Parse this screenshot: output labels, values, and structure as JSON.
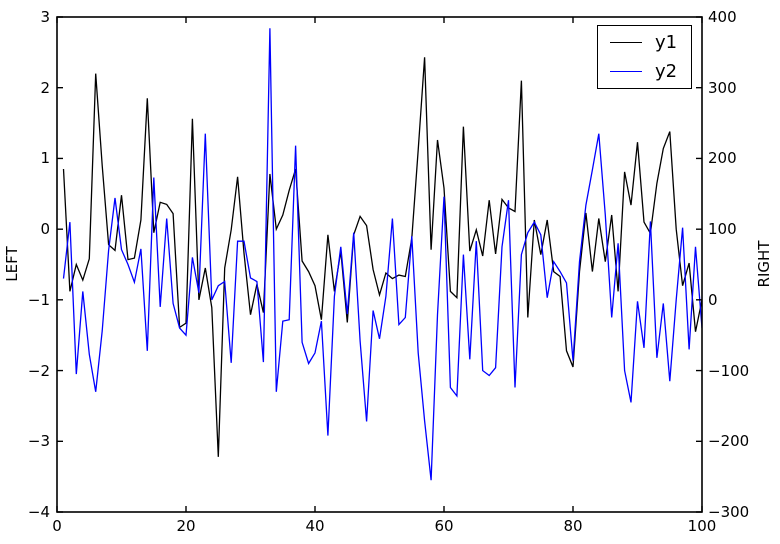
{
  "figure": {
    "background": "#ffffff",
    "accent_black": "#000000",
    "accent_blue": "#0000ff"
  },
  "chart_data": {
    "type": "line",
    "title": "",
    "xlabel": "",
    "ylabel_left": "LEFT",
    "ylabel_right": "RIGHT",
    "xlim": [
      0,
      100
    ],
    "ylim_left": [
      -4,
      3
    ],
    "ylim_right": [
      -300,
      400
    ],
    "xticks": [
      0,
      20,
      40,
      60,
      80,
      100
    ],
    "yticks_left": [
      3,
      2,
      1,
      0,
      -1,
      -2,
      -3,
      -4
    ],
    "yticks_right": [
      400,
      300,
      200,
      100,
      0,
      -100,
      -200,
      -300
    ],
    "grid": false,
    "legend": {
      "position": "upper right",
      "entries": [
        "y1",
        "y2"
      ]
    },
    "x": [
      1,
      2,
      3,
      4,
      5,
      6,
      7,
      8,
      9,
      10,
      11,
      12,
      13,
      14,
      15,
      16,
      17,
      18,
      19,
      20,
      21,
      22,
      23,
      24,
      25,
      26,
      27,
      28,
      29,
      30,
      31,
      32,
      33,
      34,
      35,
      36,
      37,
      38,
      39,
      40,
      41,
      42,
      43,
      44,
      45,
      46,
      47,
      48,
      49,
      50,
      51,
      52,
      53,
      54,
      55,
      56,
      57,
      58,
      59,
      60,
      61,
      62,
      63,
      64,
      65,
      66,
      67,
      68,
      69,
      70,
      71,
      72,
      73,
      74,
      75,
      76,
      77,
      78,
      79,
      80,
      81,
      82,
      83,
      84,
      85,
      86,
      87,
      88,
      89,
      90,
      91,
      92,
      93,
      94,
      95,
      96,
      97,
      98,
      99,
      100
    ],
    "series": [
      {
        "name": "y1",
        "axis": "left",
        "color": "#000000",
        "values": [
          0.85,
          -0.88,
          -0.5,
          -0.72,
          -0.42,
          2.2,
          0.9,
          -0.22,
          -0.3,
          0.48,
          -0.43,
          -0.41,
          0.13,
          1.85,
          -0.05,
          0.38,
          0.35,
          0.22,
          -1.39,
          -1.33,
          1.56,
          -1.0,
          -0.55,
          -1.11,
          -3.22,
          -0.55,
          -0.01,
          0.74,
          -0.34,
          -1.21,
          -0.78,
          -1.18,
          0.78,
          0.0,
          0.2,
          0.55,
          0.85,
          -0.45,
          -0.6,
          -0.8,
          -1.28,
          -0.08,
          -0.88,
          -0.31,
          -1.32,
          -0.08,
          0.18,
          0.05,
          -0.57,
          -0.93,
          -0.62,
          -0.7,
          -0.65,
          -0.67,
          -0.13,
          1.12,
          2.43,
          -0.29,
          1.26,
          0.58,
          -0.88,
          -0.97,
          1.45,
          -0.31,
          -0.01,
          -0.38,
          0.41,
          -0.35,
          0.42,
          0.3,
          0.25,
          2.1,
          -1.25,
          0.13,
          -0.36,
          0.13,
          -0.6,
          -0.67,
          -1.72,
          -1.95,
          -0.6,
          0.23,
          -0.6,
          0.15,
          -0.46,
          0.2,
          -0.88,
          0.81,
          0.34,
          1.23,
          0.1,
          -0.06,
          0.65,
          1.14,
          1.38,
          0.0,
          -0.8,
          -0.48,
          -1.45,
          -1.0
        ]
      },
      {
        "name": "y2",
        "axis": "right",
        "color": "#0000ff",
        "values": [
          30,
          110,
          -105,
          12,
          -77,
          -130,
          -44,
          70,
          144,
          71,
          50,
          25,
          72,
          -72,
          173,
          -10,
          115,
          -5,
          -40,
          -50,
          60,
          10,
          235,
          0,
          20,
          26,
          -89,
          83,
          83,
          31,
          26,
          -88,
          384,
          -130,
          -30,
          -28,
          218,
          -60,
          -90,
          -75,
          -30,
          -192,
          5,
          75,
          -20,
          95,
          -58,
          -172,
          -15,
          -55,
          5,
          115,
          -35,
          -25,
          90,
          -75,
          -171,
          -255,
          -21,
          146,
          -124,
          -136,
          64,
          -84,
          83,
          -100,
          -107,
          -96,
          75,
          141,
          -124,
          64,
          95,
          110,
          92,
          3,
          54,
          40,
          24,
          -86,
          54,
          134,
          184,
          235,
          120,
          -25,
          80,
          -100,
          -145,
          -2,
          -68,
          111,
          -82,
          -5,
          -115,
          0,
          102,
          -70,
          75,
          -40
        ]
      }
    ]
  }
}
